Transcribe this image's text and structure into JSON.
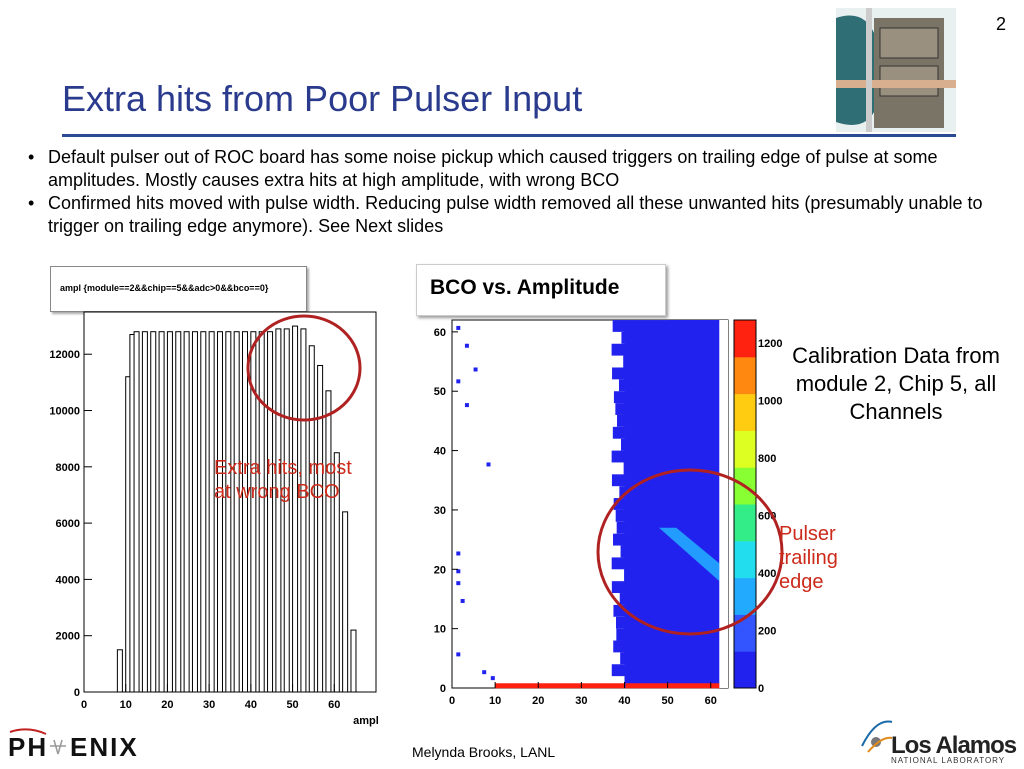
{
  "page_number": "2",
  "title": "Extra hits from Poor Pulser Input",
  "bullets": [
    "Default pulser out of ROC board has some noise pickup which caused triggers on trailing edge of pulse at some amplitudes.  Mostly causes extra hits at high amplitude, with wrong BCO",
    "Confirmed hits moved with pulse width.  Reducing pulse width removed all these unwanted hits (presumably unable to trigger on trailing edge anymore).  See Next slides"
  ],
  "caption_right": "Calibration Data from module 2, Chip 5, all Channels",
  "annotation_extra_hits": "Extra hits, most at wrong BCO",
  "annotation_pulser": "Pulser trailing edge",
  "footer": "Melynda Brooks, LANL",
  "logos": {
    "phenix": "PHENIX",
    "los_alamos": "Los Alamos",
    "los_alamos_sub": "NATIONAL LABORATORY"
  },
  "colors": {
    "title": "#2a3a8c",
    "annotation": "#cc2a1a",
    "circle": "#b02222"
  },
  "chart_data": [
    {
      "type": "bar",
      "title": "ampl {module==2&&chip==5&&adc>0&&bco==0}",
      "xlabel": "ampl",
      "ylabel": "",
      "xlim": [
        0,
        70
      ],
      "ylim": [
        0,
        13500
      ],
      "xticks": [
        0,
        10,
        20,
        30,
        40,
        50,
        60
      ],
      "yticks": [
        0,
        2000,
        4000,
        6000,
        8000,
        10000,
        12000
      ],
      "bins": [
        {
          "x": 8,
          "value": 1500
        },
        {
          "x": 10,
          "value": 11200
        },
        {
          "x": 11,
          "value": 12700
        },
        {
          "x": 12,
          "value": 12800
        },
        {
          "x": 14,
          "value": 12800
        },
        {
          "x": 16,
          "value": 12800
        },
        {
          "x": 18,
          "value": 12800
        },
        {
          "x": 20,
          "value": 12800
        },
        {
          "x": 22,
          "value": 12800
        },
        {
          "x": 24,
          "value": 12800
        },
        {
          "x": 26,
          "value": 12800
        },
        {
          "x": 28,
          "value": 12800
        },
        {
          "x": 30,
          "value": 12800
        },
        {
          "x": 32,
          "value": 12800
        },
        {
          "x": 34,
          "value": 12800
        },
        {
          "x": 36,
          "value": 12800
        },
        {
          "x": 38,
          "value": 12800
        },
        {
          "x": 40,
          "value": 12800
        },
        {
          "x": 42,
          "value": 12800
        },
        {
          "x": 44,
          "value": 12800
        },
        {
          "x": 46,
          "value": 12900
        },
        {
          "x": 48,
          "value": 12900
        },
        {
          "x": 50,
          "value": 13000
        },
        {
          "x": 52,
          "value": 12900
        },
        {
          "x": 54,
          "value": 12300
        },
        {
          "x": 56,
          "value": 11600
        },
        {
          "x": 58,
          "value": 10700
        },
        {
          "x": 60,
          "value": 8500
        },
        {
          "x": 62,
          "value": 6400
        },
        {
          "x": 64,
          "value": 2200
        }
      ]
    },
    {
      "type": "heatmap",
      "title": "BCO vs. Amplitude",
      "xlabel": "",
      "ylabel": "",
      "xlim": [
        0,
        64
      ],
      "ylim": [
        0,
        62
      ],
      "xticks": [
        0,
        10,
        20,
        30,
        40,
        50,
        60
      ],
      "yticks": [
        0,
        10,
        20,
        30,
        40,
        50,
        60
      ],
      "colorbar_ticks": [
        "0",
        "200",
        "400",
        "600",
        "800",
        "1000",
        "1200"
      ],
      "colorscale": [
        "#2222ee",
        "#3355ff",
        "#22aaff",
        "#22ddee",
        "#33ee88",
        "#88ff33",
        "#ddff22",
        "#ffcc11",
        "#ff8811",
        "#ff2211"
      ],
      "regions": [
        {
          "desc": "main band",
          "x0": 40,
          "x1": 62,
          "y0": 0,
          "y1": 62,
          "level": 0
        },
        {
          "desc": "pulser trailing edge",
          "x0": 48,
          "x1": 62,
          "y0": 18,
          "y1": 27,
          "level": 3
        },
        {
          "desc": "bco 0 row",
          "x0": 10,
          "x1": 62,
          "y0": 0,
          "y1": 0.8,
          "level": 9
        }
      ]
    }
  ]
}
